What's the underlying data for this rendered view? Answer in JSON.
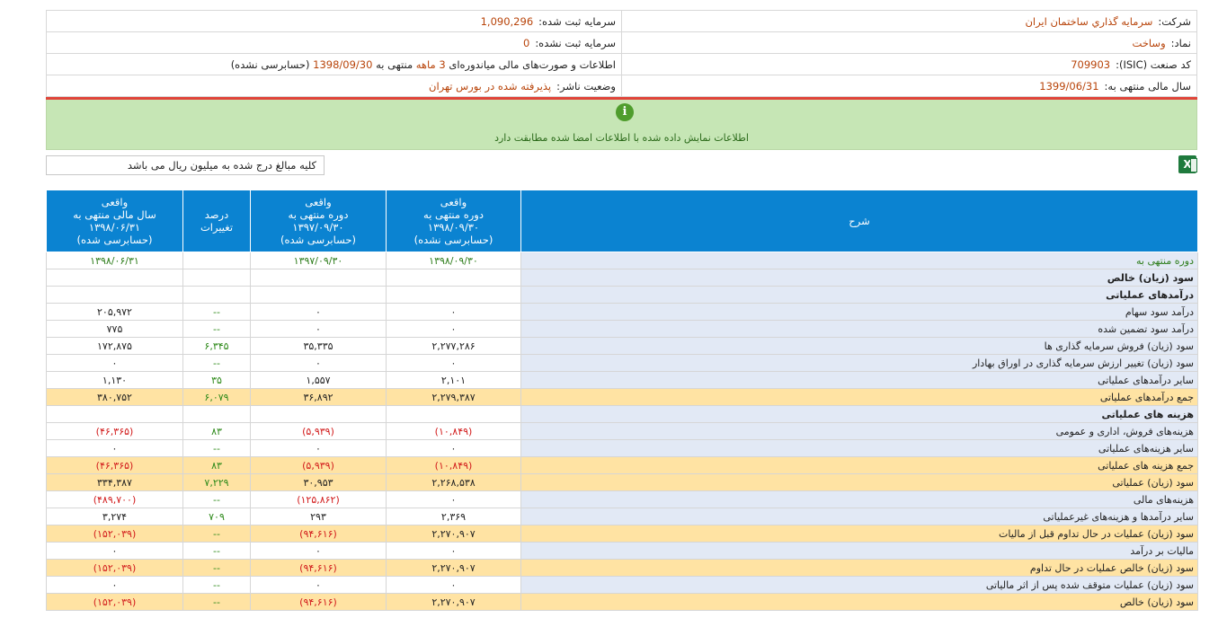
{
  "header": {
    "company_label": "شرکت:",
    "company_value": "سرمايه گذاري ساختمان ايران",
    "registered_capital_label": "سرمایه ثبت شده:",
    "registered_capital_value": "1,090,296",
    "symbol_label": "نماد:",
    "symbol_value": "وساخت",
    "unregistered_capital_label": "سرمایه ثبت نشده:",
    "unregistered_capital_value": "0",
    "isic_label": "کد صنعت (ISIC):",
    "isic_value": "709903",
    "report_prefix": "اطلاعات و صورت‌های مالی میاندوره‌ای",
    "report_period": "3 ماهه",
    "report_mid": "منتهی به",
    "report_date": "1398/09/30",
    "report_suffix": "(حسابرسی نشده)",
    "fiscal_year_label": "سال مالی منتهی به:",
    "fiscal_year_value": "1399/06/31",
    "status_label": "وضعیت ناشر:",
    "status_value": "پذیرفته شده در بورس تهران"
  },
  "notice": {
    "icon": "info-icon",
    "text": "اطلاعات نمایش داده شده با اطلاعات امضا شده مطابقت دارد"
  },
  "unit_note": "کلیه مبالغ درج شده به میلیون ریال می باشد",
  "excel_icon": "excel-export-icon",
  "table": {
    "columns": [
      {
        "l1": "شرح",
        "l2": "",
        "l3": ""
      },
      {
        "l1": "واقعی",
        "l2": "دوره منتهی به",
        "l3": "۱۳۹۸/۰۹/۳۰",
        "l4": "(حسابرسی نشده)"
      },
      {
        "l1": "واقعی",
        "l2": "دوره منتهی به",
        "l3": "۱۳۹۷/۰۹/۳۰",
        "l4": "(حسابرسی شده)"
      },
      {
        "l1": "درصد",
        "l2": "تغییرات",
        "l3": "",
        "l4": ""
      },
      {
        "l1": "واقعی",
        "l2": "سال مالی منتهی به",
        "l3": "۱۳۹۸/۰۶/۳۱",
        "l4": "(حسابرسی شده)"
      }
    ],
    "rows": [
      {
        "desc": "دوره منتهی به",
        "c1": "۱۳۹۸/۰۹/۳۰",
        "c2": "۱۳۹۷/۰۹/۳۰",
        "c3": "",
        "c4": "۱۳۹۸/۰۶/۳۱",
        "type": "period"
      },
      {
        "desc": "سود (زيان) خالص",
        "c1": "",
        "c2": "",
        "c3": "",
        "c4": "",
        "type": "sec"
      },
      {
        "desc": "درآمدهای عملیاتی",
        "c1": "",
        "c2": "",
        "c3": "",
        "c4": "",
        "type": "sec"
      },
      {
        "desc": "درآمد سود سهام",
        "c1": "۰",
        "c2": "۰",
        "c3": "--",
        "c4": "۲۰۵,۹۷۲",
        "type": ""
      },
      {
        "desc": "درآمد سود تضمین شده",
        "c1": "۰",
        "c2": "۰",
        "c3": "--",
        "c4": "۷۷۵",
        "type": ""
      },
      {
        "desc": "سود (زيان) فروش سرمايه گذاری ها",
        "c1": "۲,۲۷۷,۲۸۶",
        "c2": "۳۵,۳۳۵",
        "c3": "۶,۳۴۵",
        "c4": "۱۷۲,۸۷۵",
        "type": ""
      },
      {
        "desc": "سود (زيان) تغيير ارزش سرمايه گذاری در اوراق بهادار",
        "c1": "۰",
        "c2": "۰",
        "c3": "--",
        "c4": "۰",
        "type": ""
      },
      {
        "desc": "سایر درآمدهای عملیاتی",
        "c1": "۲,۱۰۱",
        "c2": "۱,۵۵۷",
        "c3": "۳۵",
        "c4": "۱,۱۳۰",
        "type": ""
      },
      {
        "desc": "جمع درآمدهای عملیاتی",
        "c1": "۲,۲۷۹,۳۸۷",
        "c2": "۳۶,۸۹۲",
        "c3": "۶,۰۷۹",
        "c4": "۳۸۰,۷۵۲",
        "type": "hl"
      },
      {
        "desc": "هزینه های عملیاتی",
        "c1": "",
        "c2": "",
        "c3": "",
        "c4": "",
        "type": "sec"
      },
      {
        "desc": "هزينه‌های فروش، اداری و عمومی",
        "c1": "(۱۰,۸۴۹)",
        "c2": "(۵,۹۳۹)",
        "c3": "۸۳",
        "c4": "(۴۶,۳۶۵)",
        "type": ""
      },
      {
        "desc": "سایر هزينه‌های عملیاتی",
        "c1": "۰",
        "c2": "۰",
        "c3": "--",
        "c4": "۰",
        "type": ""
      },
      {
        "desc": "جمع هزینه های عملیاتی",
        "c1": "(۱۰,۸۴۹)",
        "c2": "(۵,۹۳۹)",
        "c3": "۸۳",
        "c4": "(۴۶,۳۶۵)",
        "type": "hl"
      },
      {
        "desc": "سود (زيان) عملیاتی",
        "c1": "۲,۲۶۸,۵۳۸",
        "c2": "۳۰,۹۵۳",
        "c3": "۷,۲۲۹",
        "c4": "۳۳۴,۳۸۷",
        "type": "hl"
      },
      {
        "desc": "هزینه‌های مالی",
        "c1": "۰",
        "c2": "(۱۲۵,۸۶۲)",
        "c3": "--",
        "c4": "(۴۸۹,۷۰۰)",
        "type": ""
      },
      {
        "desc": "سایر درآمدها و هزینه‌های غیرعملیاتی",
        "c1": "۲,۳۶۹",
        "c2": "۲۹۳",
        "c3": "۷۰۹",
        "c4": "۳,۲۷۴",
        "type": ""
      },
      {
        "desc": "سود (زيان) عمليات در حال تداوم قبل از ماليات",
        "c1": "۲,۲۷۰,۹۰۷",
        "c2": "(۹۴,۶۱۶)",
        "c3": "--",
        "c4": "(۱۵۲,۰۳۹)",
        "type": "hl"
      },
      {
        "desc": "ماليات بر درآمد",
        "c1": "۰",
        "c2": "۰",
        "c3": "--",
        "c4": "۰",
        "type": ""
      },
      {
        "desc": "سود (زيان) خالص عمليات در حال تداوم",
        "c1": "۲,۲۷۰,۹۰۷",
        "c2": "(۹۴,۶۱۶)",
        "c3": "--",
        "c4": "(۱۵۲,۰۳۹)",
        "type": "hl"
      },
      {
        "desc": "سود (زيان) عمليات متوقف شده پس از اثر مالياتی",
        "c1": "۰",
        "c2": "۰",
        "c3": "--",
        "c4": "۰",
        "type": ""
      },
      {
        "desc": "سود (زيان) خالص",
        "c1": "۲,۲۷۰,۹۰۷",
        "c2": "(۹۴,۶۱۶)",
        "c3": "--",
        "c4": "(۱۵۲,۰۳۹)",
        "type": "hl"
      }
    ]
  }
}
